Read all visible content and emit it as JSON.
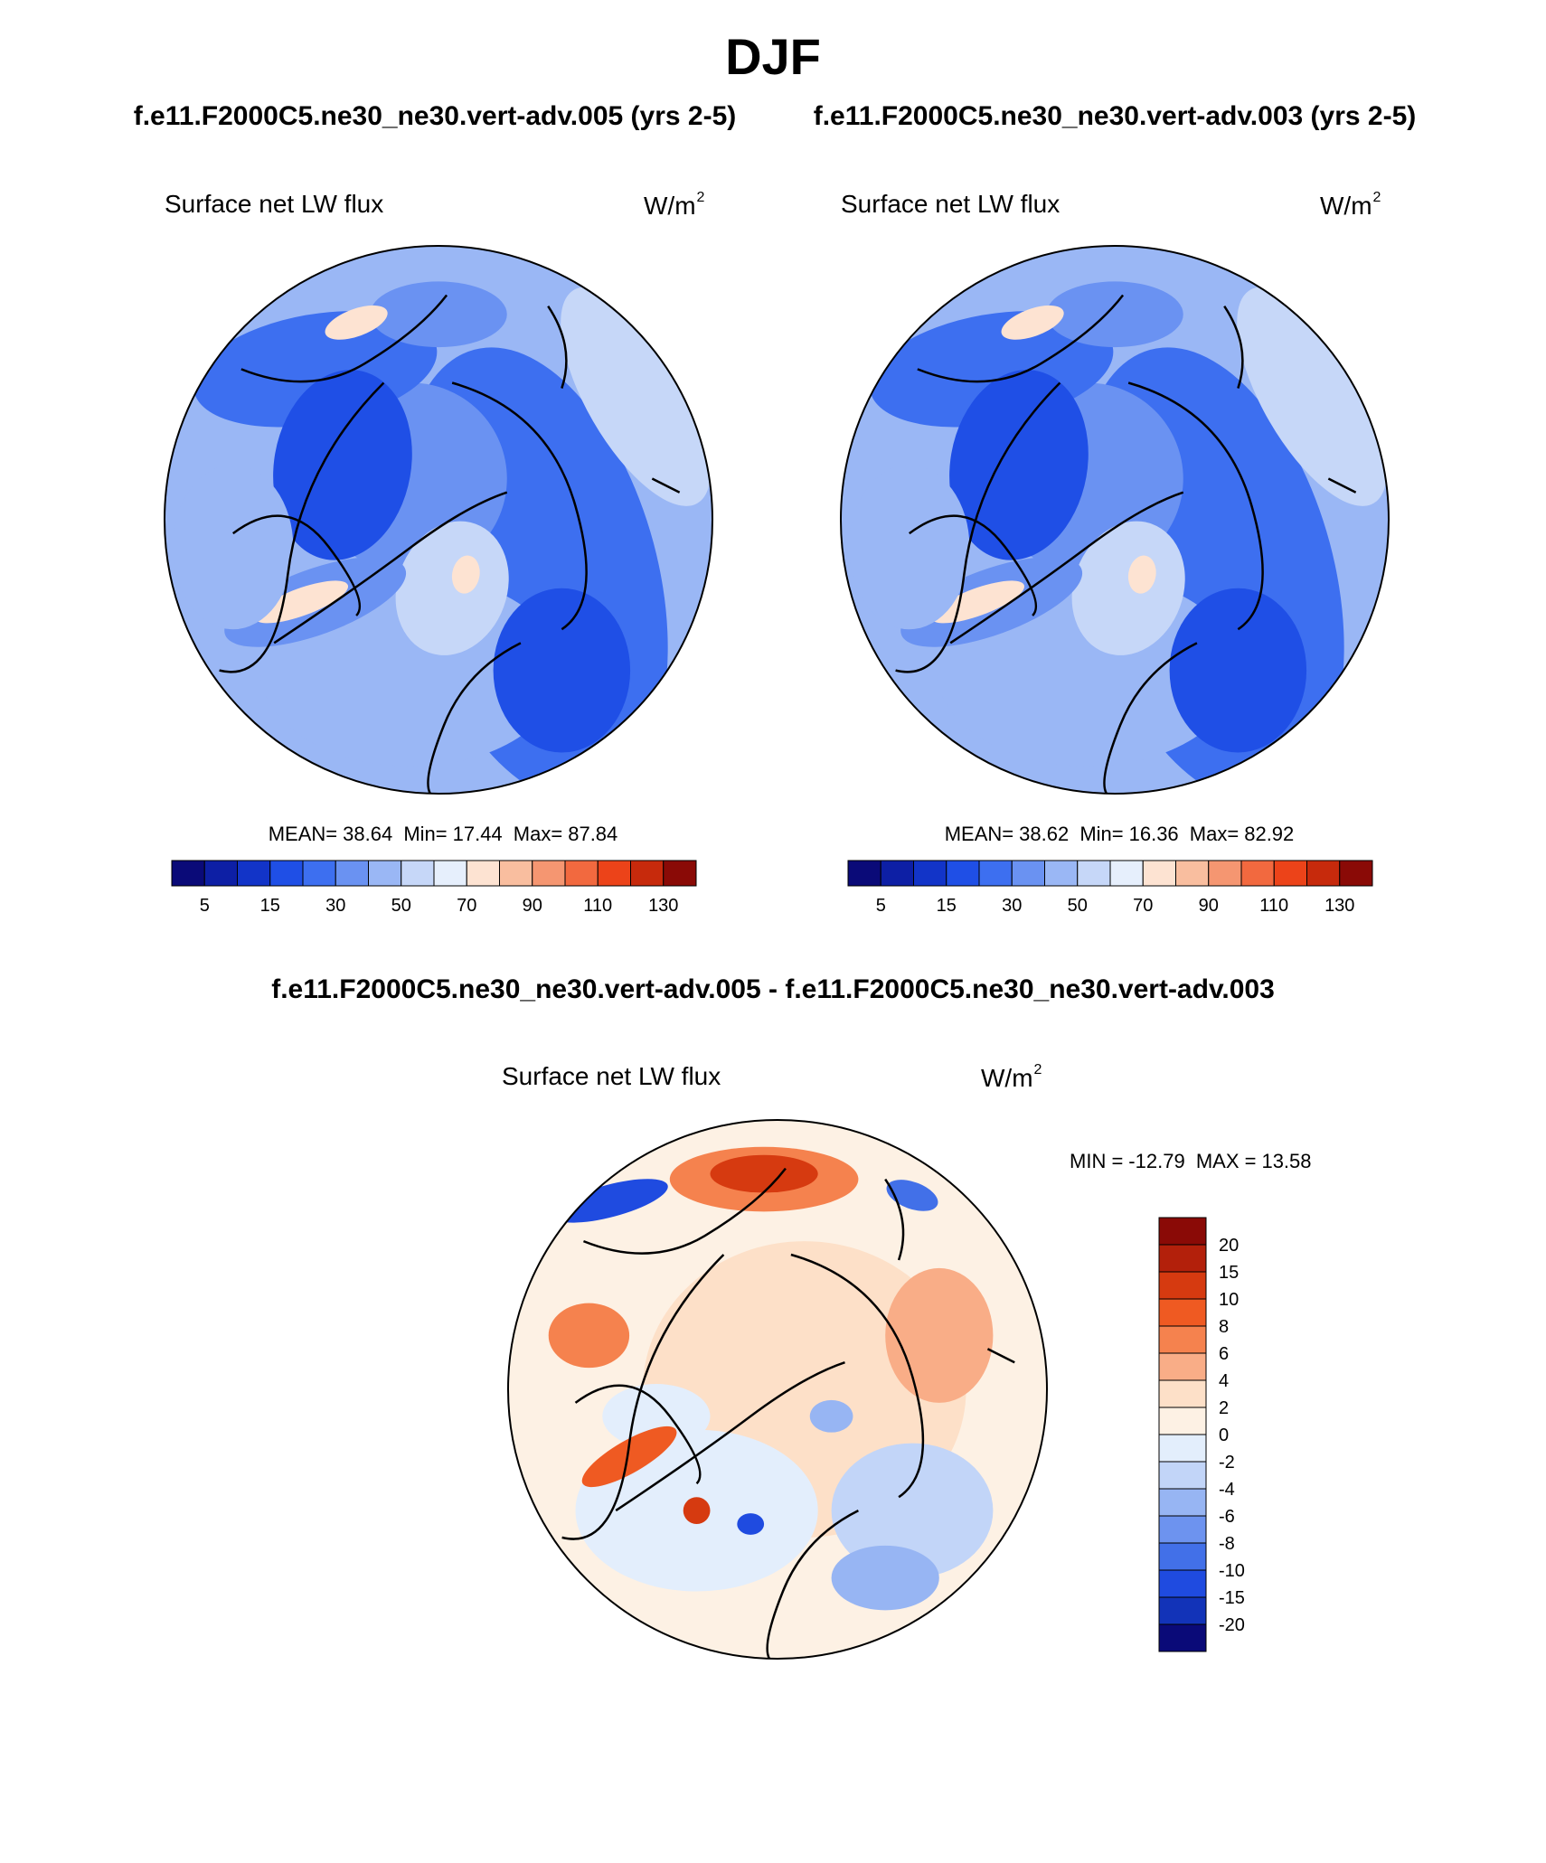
{
  "figure": {
    "title": "DJF",
    "case_a_title": "f.e11.F2000C5.ne30_ne30.vert-adv.005 (yrs 2-5)",
    "case_b_title": "f.e11.F2000C5.ne30_ne30.vert-adv.003 (yrs 2-5)",
    "diff_title": "f.e11.F2000C5.ne30_ne30.vert-adv.005 - f.e11.F2000C5.ne30_ne30.vert-adv.003"
  },
  "chart_data": [
    {
      "type": "heatmap",
      "projection": "north-polar-stereographic",
      "variable": "Surface net LW flux",
      "units_base": "W/m",
      "units_exp": "2",
      "stats": {
        "mean_label": "MEAN=",
        "mean": "38.64",
        "min_label": "Min=",
        "min": "17.44",
        "max_label": "Max=",
        "max": "87.84"
      },
      "colorbar": {
        "orientation": "horizontal",
        "levels": [
          5,
          10,
          15,
          20,
          30,
          40,
          50,
          60,
          70,
          80,
          90,
          100,
          110,
          120,
          130
        ],
        "tick_labels": [
          "5",
          "15",
          "30",
          "50",
          "70",
          "90",
          "110",
          "130"
        ],
        "colors": [
          "#0a0a78",
          "#0d1fa5",
          "#1234c8",
          "#1f4fe6",
          "#3d6ff0",
          "#6a92f2",
          "#9ab7f5",
          "#c6d7f8",
          "#e6effc",
          "#fde3d2",
          "#f9be9f",
          "#f59671",
          "#f2693f",
          "#ec4319",
          "#c72a0c",
          "#8a0a06"
        ]
      }
    },
    {
      "type": "heatmap",
      "projection": "north-polar-stereographic",
      "variable": "Surface net LW flux",
      "units_base": "W/m",
      "units_exp": "2",
      "stats": {
        "mean_label": "MEAN=",
        "mean": "38.62",
        "min_label": "Min=",
        "min": "16.36",
        "max_label": "Max=",
        "max": "82.92"
      },
      "colorbar": {
        "orientation": "horizontal",
        "levels": [
          5,
          10,
          15,
          20,
          30,
          40,
          50,
          60,
          70,
          80,
          90,
          100,
          110,
          120,
          130
        ],
        "tick_labels": [
          "5",
          "15",
          "30",
          "50",
          "70",
          "90",
          "110",
          "130"
        ],
        "colors": [
          "#0a0a78",
          "#0d1fa5",
          "#1234c8",
          "#1f4fe6",
          "#3d6ff0",
          "#6a92f2",
          "#9ab7f5",
          "#c6d7f8",
          "#e6effc",
          "#fde3d2",
          "#f9be9f",
          "#f59671",
          "#f2693f",
          "#ec4319",
          "#c72a0c",
          "#8a0a06"
        ]
      }
    },
    {
      "type": "heatmap",
      "projection": "north-polar-stereographic",
      "variable": "Surface net LW flux",
      "units_base": "W/m",
      "units_exp": "2",
      "stats": {
        "min_label": "MIN =",
        "min": "-12.79",
        "max_label": "MAX =",
        "max": "13.58"
      },
      "colorbar": {
        "orientation": "vertical",
        "levels": [
          20,
          15,
          10,
          8,
          6,
          4,
          2,
          0,
          -2,
          -4,
          -6,
          -8,
          -10,
          -15,
          -20
        ],
        "tick_labels": [
          "20",
          "15",
          "10",
          "8",
          "6",
          "4",
          "2",
          "0",
          "-2",
          "-4",
          "-6",
          "-8",
          "-10",
          "-15",
          "-20"
        ],
        "colors": [
          "#8a0a06",
          "#b3200b",
          "#d63a10",
          "#ef5a22",
          "#f5824e",
          "#f9ad87",
          "#fde0c8",
          "#fdf1e4",
          "#e3eefc",
          "#c2d5f8",
          "#97b5f3",
          "#6d93ef",
          "#4270e8",
          "#1f4be0",
          "#1233b8",
          "#0a0a78"
        ]
      }
    }
  ]
}
